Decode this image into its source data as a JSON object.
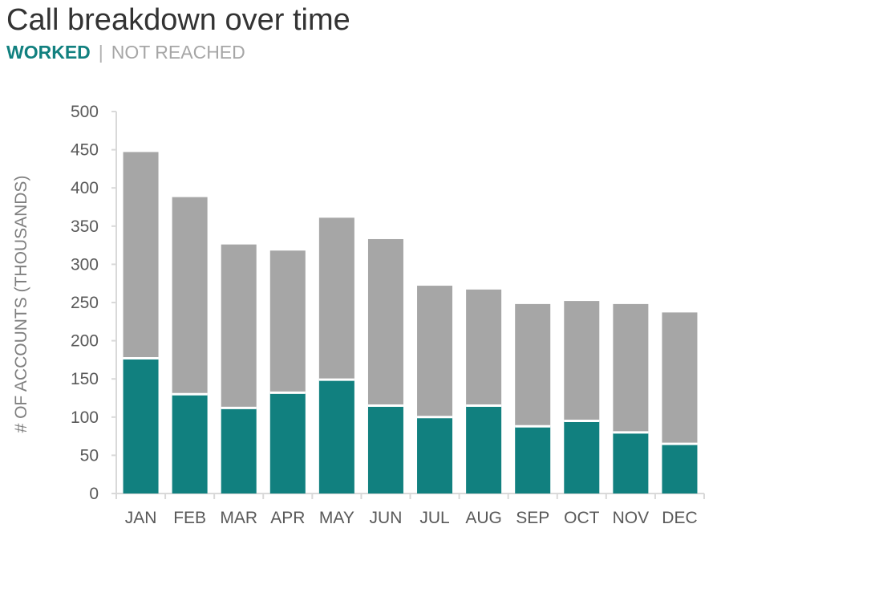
{
  "title": "Call breakdown over time",
  "legend": {
    "worked": "WORKED",
    "separator": "|",
    "not_reached": "NOT REACHED"
  },
  "colors": {
    "worked": "#11807f",
    "not_reached": "#a6a6a6",
    "axis": "#d9d9d9"
  },
  "chart_data": {
    "type": "bar",
    "stacked": true,
    "title": "Call breakdown over time",
    "ylabel": "# OF ACCOUNTS (THOUSANDS)",
    "xlabel": "",
    "ylim": [
      0,
      500
    ],
    "yticks": [
      0,
      50,
      100,
      150,
      200,
      250,
      300,
      350,
      400,
      450,
      500
    ],
    "categories": [
      "JAN",
      "FEB",
      "MAR",
      "APR",
      "MAY",
      "JUN",
      "JUL",
      "AUG",
      "SEP",
      "OCT",
      "NOV",
      "DEC"
    ],
    "series": [
      {
        "name": "WORKED",
        "values": [
          177,
          130,
          112,
          132,
          149,
          115,
          100,
          115,
          88,
          95,
          80,
          65
        ]
      },
      {
        "name": "NOT REACHED",
        "values": [
          270,
          258,
          214,
          186,
          212,
          218,
          172,
          152,
          160,
          157,
          168,
          172
        ]
      }
    ],
    "grid": false,
    "legend_position": "top-left (subtitle)"
  }
}
